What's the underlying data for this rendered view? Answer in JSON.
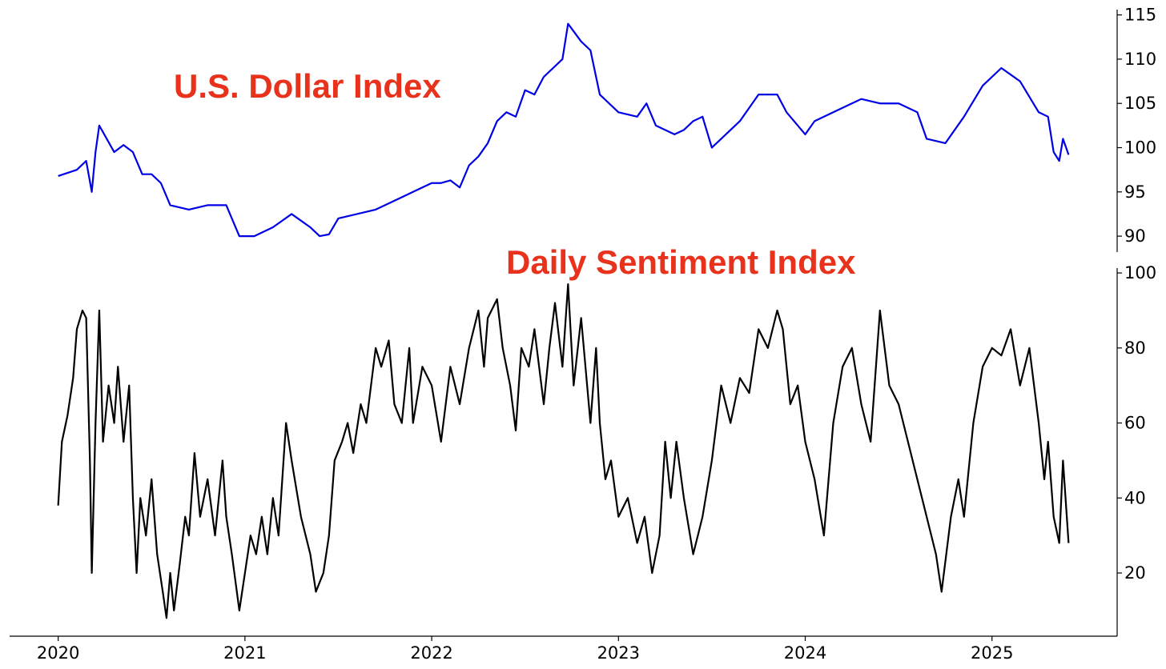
{
  "chart_data": [
    {
      "type": "line",
      "title": "U.S. Dollar Index",
      "x": [
        2020.0,
        2020.1,
        2020.15,
        2020.18,
        2020.2,
        2020.22,
        2020.3,
        2020.35,
        2020.4,
        2020.45,
        2020.5,
        2020.55,
        2020.6,
        2020.7,
        2020.8,
        2020.9,
        2020.95,
        2020.97,
        2021.05,
        2021.15,
        2021.25,
        2021.35,
        2021.4,
        2021.45,
        2021.5,
        2021.6,
        2021.7,
        2021.8,
        2021.9,
        2022.0,
        2022.05,
        2022.1,
        2022.15,
        2022.2,
        2022.25,
        2022.3,
        2022.35,
        2022.4,
        2022.45,
        2022.5,
        2022.55,
        2022.6,
        2022.65,
        2022.7,
        2022.73,
        2022.8,
        2022.85,
        2022.9,
        2023.0,
        2023.1,
        2023.15,
        2023.2,
        2023.3,
        2023.35,
        2023.4,
        2023.45,
        2023.5,
        2023.55,
        2023.65,
        2023.75,
        2023.85,
        2023.9,
        2024.0,
        2024.05,
        2024.15,
        2024.3,
        2024.4,
        2024.5,
        2024.6,
        2024.65,
        2024.75,
        2024.85,
        2024.95,
        2025.05,
        2025.15,
        2025.25,
        2025.3,
        2025.33,
        2025.36,
        2025.38,
        2025.41
      ],
      "series": [
        {
          "color": "#0000e6",
          "values": [
            96.8,
            97.5,
            98.5,
            95,
            99.5,
            102.5,
            99.5,
            100.3,
            99.5,
            97,
            97,
            96,
            93.5,
            93,
            93.5,
            93.5,
            91,
            90,
            90,
            91,
            92.5,
            91,
            90,
            90.2,
            92,
            92.5,
            93,
            94,
            95,
            96,
            96,
            96.3,
            95.5,
            98,
            99,
            100.5,
            103,
            104,
            103.5,
            106.5,
            106,
            108,
            109,
            110,
            114,
            112,
            111,
            106,
            104,
            103.5,
            105,
            102.5,
            101.5,
            102,
            103,
            103.5,
            100,
            101,
            103,
            106,
            106,
            104,
            101.5,
            103,
            104,
            105.5,
            105,
            105,
            104,
            101,
            100.5,
            103.5,
            107,
            109,
            107.5,
            104,
            103.5,
            99.5,
            98.5,
            101,
            99.2
          ]
        }
      ],
      "xlim": [
        2019.74,
        2025.67
      ],
      "ylim": [
        88.2,
        115.6
      ],
      "yticks": [
        90,
        95,
        100,
        105,
        110,
        115
      ]
    },
    {
      "type": "line",
      "title": "Daily Sentiment Index",
      "x": [
        2020.0,
        2020.02,
        2020.05,
        2020.08,
        2020.1,
        2020.13,
        2020.15,
        2020.17,
        2020.18,
        2020.2,
        2020.22,
        2020.24,
        2020.27,
        2020.3,
        2020.32,
        2020.35,
        2020.38,
        2020.4,
        2020.42,
        2020.44,
        2020.47,
        2020.5,
        2020.53,
        2020.56,
        2020.58,
        2020.6,
        2020.62,
        2020.65,
        2020.68,
        2020.7,
        2020.73,
        2020.76,
        2020.8,
        2020.84,
        2020.88,
        2020.9,
        2020.93,
        2020.97,
        2021.0,
        2021.03,
        2021.06,
        2021.09,
        2021.12,
        2021.15,
        2021.18,
        2021.22,
        2021.25,
        2021.3,
        2021.35,
        2021.38,
        2021.42,
        2021.45,
        2021.48,
        2021.52,
        2021.55,
        2021.58,
        2021.62,
        2021.65,
        2021.7,
        2021.73,
        2021.77,
        2021.8,
        2021.84,
        2021.88,
        2021.9,
        2021.95,
        2022.0,
        2022.05,
        2022.1,
        2022.15,
        2022.2,
        2022.25,
        2022.28,
        2022.3,
        2022.35,
        2022.38,
        2022.42,
        2022.45,
        2022.48,
        2022.52,
        2022.55,
        2022.6,
        2022.63,
        2022.66,
        2022.7,
        2022.73,
        2022.76,
        2022.8,
        2022.85,
        2022.88,
        2022.9,
        2022.93,
        2022.96,
        2023.0,
        2023.05,
        2023.1,
        2023.14,
        2023.18,
        2023.22,
        2023.25,
        2023.28,
        2023.31,
        2023.35,
        2023.4,
        2023.45,
        2023.5,
        2023.55,
        2023.6,
        2023.65,
        2023.7,
        2023.75,
        2023.8,
        2023.85,
        2023.88,
        2023.92,
        2023.96,
        2024.0,
        2024.05,
        2024.1,
        2024.15,
        2024.2,
        2024.25,
        2024.3,
        2024.35,
        2024.4,
        2024.45,
        2024.5,
        2024.55,
        2024.6,
        2024.65,
        2024.7,
        2024.73,
        2024.78,
        2024.82,
        2024.85,
        2024.9,
        2024.95,
        2025.0,
        2025.05,
        2025.1,
        2025.15,
        2025.2,
        2025.25,
        2025.28,
        2025.3,
        2025.33,
        2025.36,
        2025.38,
        2025.41
      ],
      "series": [
        {
          "color": "#000000",
          "values": [
            38,
            55,
            62,
            72,
            85,
            90,
            88,
            50,
            20,
            60,
            90,
            55,
            70,
            60,
            75,
            55,
            70,
            40,
            20,
            40,
            30,
            45,
            25,
            15,
            8,
            20,
            10,
            22,
            35,
            30,
            52,
            35,
            45,
            30,
            50,
            35,
            25,
            10,
            20,
            30,
            25,
            35,
            25,
            40,
            30,
            60,
            50,
            35,
            25,
            15,
            20,
            30,
            50,
            55,
            60,
            52,
            65,
            60,
            80,
            75,
            82,
            65,
            60,
            80,
            60,
            75,
            70,
            55,
            75,
            65,
            80,
            90,
            75,
            88,
            93,
            80,
            70,
            58,
            80,
            75,
            85,
            65,
            80,
            92,
            75,
            97,
            70,
            88,
            60,
            80,
            60,
            45,
            50,
            35,
            40,
            28,
            35,
            20,
            30,
            55,
            40,
            55,
            40,
            25,
            35,
            50,
            70,
            60,
            72,
            68,
            85,
            80,
            90,
            85,
            65,
            70,
            55,
            45,
            30,
            60,
            75,
            80,
            65,
            55,
            90,
            70,
            65,
            55,
            45,
            35,
            25,
            15,
            35,
            45,
            35,
            60,
            75,
            80,
            78,
            85,
            70,
            80,
            60,
            45,
            55,
            35,
            28,
            50,
            28
          ]
        }
      ],
      "xlim": [
        2019.74,
        2025.67
      ],
      "ylim": [
        3.15,
        101.3
      ],
      "yticks": [
        20,
        40,
        60,
        80,
        100
      ],
      "xticks": [
        2020,
        2021,
        2022,
        2023,
        2024,
        2025
      ]
    }
  ]
}
